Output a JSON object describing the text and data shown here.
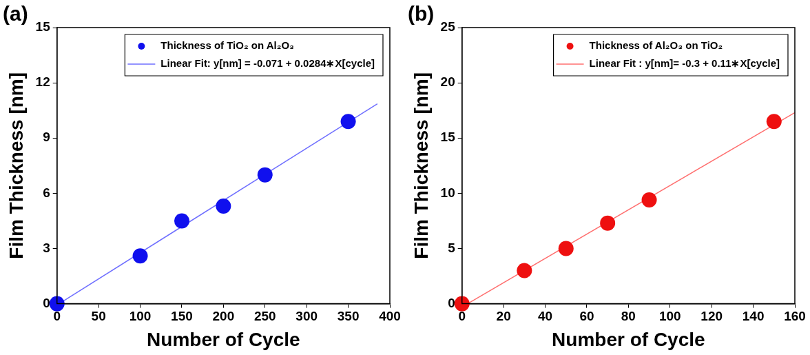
{
  "chart_data": [
    {
      "type": "scatter",
      "title": "(a)",
      "xlabel": "Number of Cycle",
      "ylabel": "Film Thickness [nm]",
      "xlim": [
        0,
        400
      ],
      "xticks": [
        0,
        50,
        100,
        150,
        200,
        250,
        300,
        350,
        400
      ],
      "ylim": [
        0,
        15
      ],
      "yticks": [
        0,
        3,
        6,
        9,
        12,
        15
      ],
      "legend": "top right",
      "series": [
        {
          "name": "Thickness of TiO₂ on Al₂O₃",
          "type": "scatter",
          "marker": "circle",
          "color": "#1010ee",
          "x": [
            0,
            100,
            150,
            200,
            250,
            350
          ],
          "values": [
            0,
            2.6,
            4.5,
            5.3,
            7.0,
            9.9
          ]
        },
        {
          "name": "Linear Fit: y[nm] = -0.071 + 0.0284∗X[cycle]",
          "type": "line",
          "marker": "none",
          "color": "#6f6fff",
          "x": [
            2.5,
            385
          ],
          "values": [
            0,
            10.86
          ]
        }
      ]
    },
    {
      "type": "scatter",
      "title": "(b)",
      "xlabel": "Number of Cycle",
      "ylabel": "Film Thickness [nm]",
      "xlim": [
        0,
        160
      ],
      "xticks": [
        0,
        20,
        40,
        60,
        80,
        100,
        120,
        140,
        160
      ],
      "ylim": [
        0,
        25
      ],
      "yticks": [
        0,
        5,
        10,
        15,
        20,
        25
      ],
      "legend": "top right",
      "series": [
        {
          "name": "Thickness of Al₂O₃ on TiO₂",
          "type": "scatter",
          "marker": "circle",
          "color": "#ee1010",
          "x": [
            0,
            30,
            50,
            70,
            90,
            150
          ],
          "values": [
            0,
            3.0,
            5.0,
            7.3,
            9.4,
            16.5
          ]
        },
        {
          "name": "Linear Fit : y[nm]= -0.3 + 0.11∗X[cycle]",
          "type": "line",
          "marker": "none",
          "color": "#ff6f6f",
          "x": [
            2.7,
            160
          ],
          "values": [
            0,
            17.3
          ]
        }
      ]
    }
  ]
}
